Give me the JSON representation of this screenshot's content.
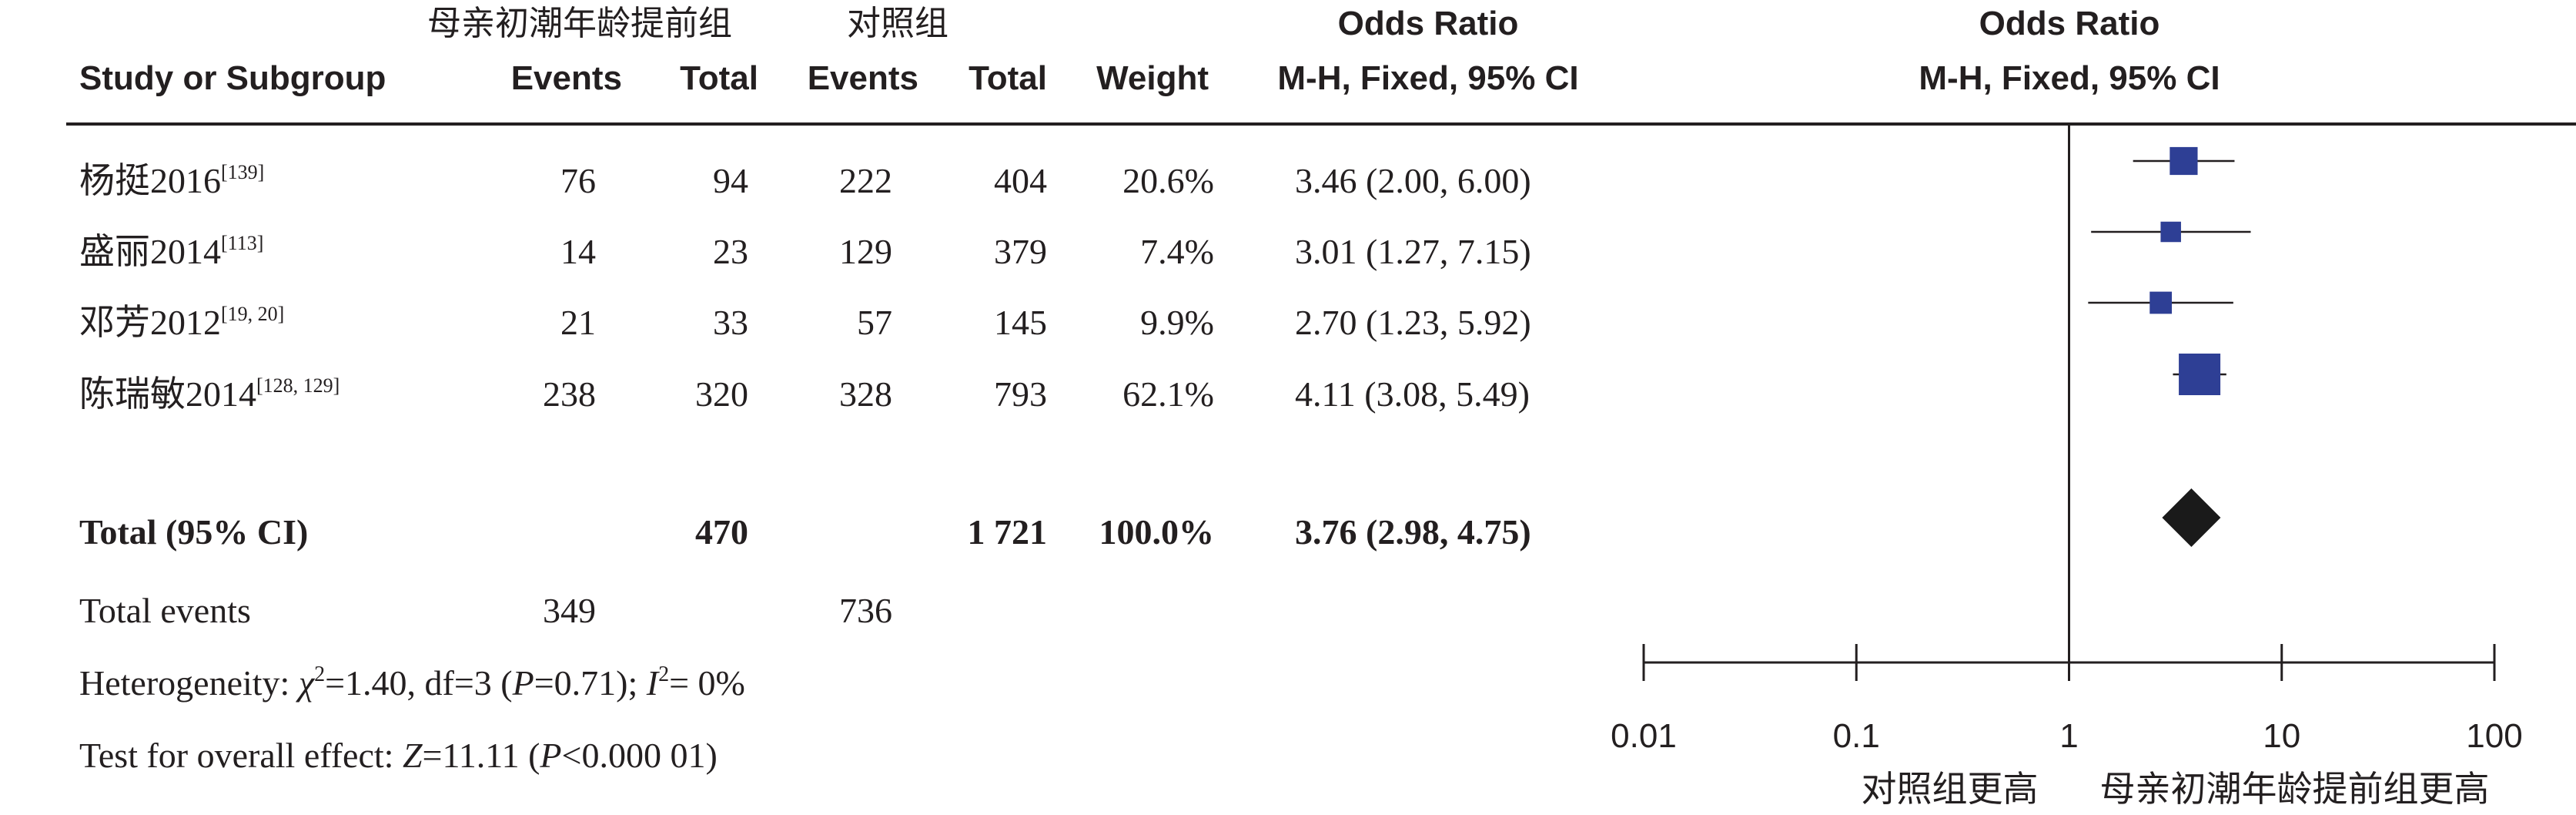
{
  "header": {
    "group_exp": "母亲初潮年龄提前组",
    "group_ctrl": "对照组",
    "col_study": "Study or Subgroup",
    "col_events_1": "Events",
    "col_total_1": "Total",
    "col_events_2": "Events",
    "col_total_2": "Total",
    "col_weight": "Weight",
    "or_title": "Odds Ratio",
    "or_method": "M-H, Fixed, 95% CI",
    "plot_title": "Odds Ratio",
    "plot_method": "M-H, Fixed, 95% CI"
  },
  "studies": [
    {
      "name": "杨挺2016",
      "ref": "[139]",
      "events_exp": "76",
      "total_exp": "94",
      "events_ctrl": "222",
      "total_ctrl": "404",
      "weight": "20.6%",
      "ci_text": "3.46 (2.00, 6.00)"
    },
    {
      "name": "盛丽2014",
      "ref": "[113]",
      "events_exp": "14",
      "total_exp": "23",
      "events_ctrl": "129",
      "total_ctrl": "379",
      "weight": "7.4%",
      "ci_text": "3.01 (1.27, 7.15)"
    },
    {
      "name": "邓芳2012",
      "ref": "[19, 20]",
      "events_exp": "21",
      "total_exp": "33",
      "events_ctrl": "57",
      "total_ctrl": "145",
      "weight": "9.9%",
      "ci_text": "2.70 (1.23, 5.92)"
    },
    {
      "name": "陈瑞敏2014",
      "ref": "[128, 129]",
      "events_exp": "238",
      "total_exp": "320",
      "events_ctrl": "328",
      "total_ctrl": "793",
      "weight": "62.1%",
      "ci_text": "4.11 (3.08, 5.49)"
    }
  ],
  "total": {
    "label": "Total (95% CI)",
    "total_exp": "470",
    "total_ctrl": "1 721",
    "weight": "100.0%",
    "ci_text": "3.76 (2.98, 4.75)"
  },
  "total_events": {
    "label": "Total events",
    "exp": "349",
    "ctrl": "736"
  },
  "heterogeneity": {
    "prefix": "Heterogeneity: ",
    "chi_sym": "χ",
    "chi_sup": "2",
    "chi_rest": "=1.40, df=3 (",
    "p_sym": "P",
    "p_rest": "=0.71); ",
    "i_sym": "I",
    "i_sup": "2",
    "i_rest": "= 0%"
  },
  "overall": {
    "prefix": "Test for overall effect: ",
    "z_sym": "Z",
    "z_rest": "=11.11 (",
    "p_sym": "P",
    "p_rest": "<0.000 01)"
  },
  "chart_data": {
    "type": "forest",
    "scale": "log",
    "xlim": [
      0.01,
      100
    ],
    "x_ticks": [
      0.01,
      0.1,
      1,
      10,
      100
    ],
    "x_tick_labels": [
      "0.01",
      "0.1",
      "1",
      "10",
      "100"
    ],
    "favours_left": "对照组更高",
    "favours_right": "母亲初潮年龄提前组更高",
    "colors": {
      "study_box": "#2e3f95",
      "summary_diamond": "#1a1a1a",
      "lines": "#231f20"
    },
    "studies": [
      {
        "or": 3.46,
        "lower": 2.0,
        "upper": 6.0,
        "weight": 20.6
      },
      {
        "or": 3.01,
        "lower": 1.27,
        "upper": 7.15,
        "weight": 7.4
      },
      {
        "or": 2.7,
        "lower": 1.23,
        "upper": 5.92,
        "weight": 9.9
      },
      {
        "or": 4.11,
        "lower": 3.08,
        "upper": 5.49,
        "weight": 62.1
      }
    ],
    "summary": {
      "or": 3.76,
      "lower": 2.98,
      "upper": 4.75
    }
  }
}
